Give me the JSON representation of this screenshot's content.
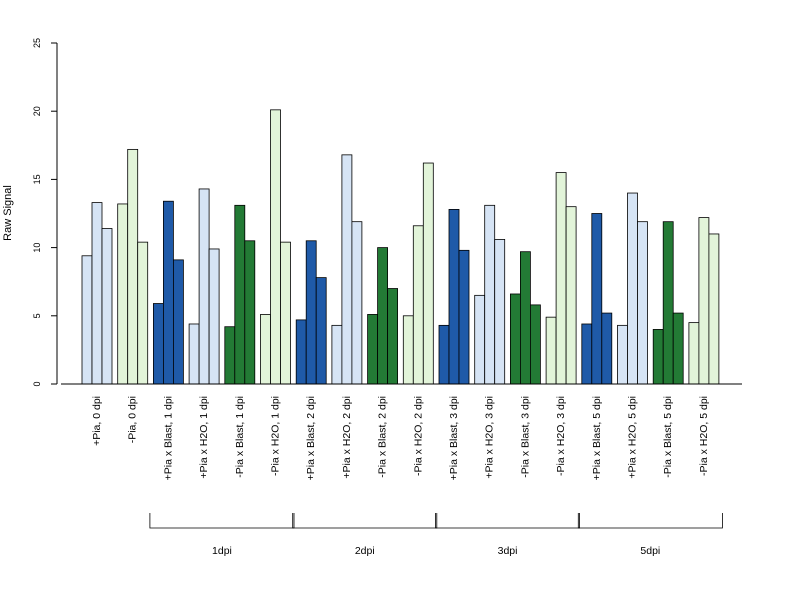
{
  "chart_data": {
    "type": "bar",
    "ylabel": "Raw Signal",
    "ylim": [
      0,
      25
    ],
    "yticks": [
      0,
      5,
      10,
      15,
      20,
      25
    ],
    "grid": false,
    "legend": "none",
    "colors": {
      "light_blue": "#d6e4f5",
      "dark_blue": "#1f5aa8",
      "light_green": "#e2f4d9",
      "dark_green": "#237a35",
      "outline": "#000000"
    },
    "categories": [
      {
        "label": "+Pia, 0 dpi",
        "color": "light_blue",
        "values": [
          9.4,
          13.3,
          11.4
        ]
      },
      {
        "label": "-Pia, 0 dpi",
        "color": "light_green",
        "values": [
          13.2,
          17.2,
          10.4
        ]
      },
      {
        "label": "+Pia x Blast, 1 dpi",
        "color": "dark_blue",
        "values": [
          5.9,
          13.4,
          9.1
        ]
      },
      {
        "label": "+Pia x H2O, 1 dpi",
        "color": "light_blue",
        "values": [
          4.4,
          14.3,
          9.9
        ]
      },
      {
        "label": "-Pia x Blast, 1 dpi",
        "color": "dark_green",
        "values": [
          4.2,
          13.1,
          10.5
        ]
      },
      {
        "label": "-Pia x H2O, 1 dpi",
        "color": "light_green",
        "values": [
          5.1,
          20.1,
          10.4
        ]
      },
      {
        "label": "+Pia x Blast, 2 dpi",
        "color": "dark_blue",
        "values": [
          4.7,
          10.5,
          7.8
        ]
      },
      {
        "label": "+Pia x H2O, 2 dpi",
        "color": "light_blue",
        "values": [
          4.3,
          16.8,
          11.9
        ]
      },
      {
        "label": "-Pia x Blast, 2 dpi",
        "color": "dark_green",
        "values": [
          5.1,
          10.0,
          7.0
        ]
      },
      {
        "label": "-Pia x H2O, 2 dpi",
        "color": "light_green",
        "values": [
          5.0,
          11.6,
          16.2
        ]
      },
      {
        "label": "+Pia x Blast, 3 dpi",
        "color": "dark_blue",
        "values": [
          4.3,
          12.8,
          9.8
        ]
      },
      {
        "label": "+Pia x H2O, 3 dpi",
        "color": "light_blue",
        "values": [
          6.5,
          13.1,
          10.6
        ]
      },
      {
        "label": "-Pia x Blast, 3 dpi",
        "color": "dark_green",
        "values": [
          6.6,
          9.7,
          5.8
        ]
      },
      {
        "label": "-Pia x H2O, 3 dpi",
        "color": "light_green",
        "values": [
          4.9,
          15.5,
          13.0
        ]
      },
      {
        "label": "+Pia x Blast, 5 dpi",
        "color": "dark_blue",
        "values": [
          4.4,
          12.5,
          5.2
        ]
      },
      {
        "label": "+Pia x H2O, 5 dpi",
        "color": "light_blue",
        "values": [
          4.3,
          14.0,
          11.9
        ]
      },
      {
        "label": "-Pia x Blast, 5 dpi",
        "color": "dark_green",
        "values": [
          4.0,
          11.9,
          5.2
        ]
      },
      {
        "label": "-Pia x H2O, 5 dpi",
        "color": "light_green",
        "values": [
          4.5,
          12.2,
          11.0
        ]
      }
    ],
    "time_groups": [
      {
        "label": "1dpi",
        "from": 2,
        "to": 5
      },
      {
        "label": "2dpi",
        "from": 6,
        "to": 9
      },
      {
        "label": "3dpi",
        "from": 10,
        "to": 13
      },
      {
        "label": "5dpi",
        "from": 14,
        "to": 17
      }
    ]
  }
}
